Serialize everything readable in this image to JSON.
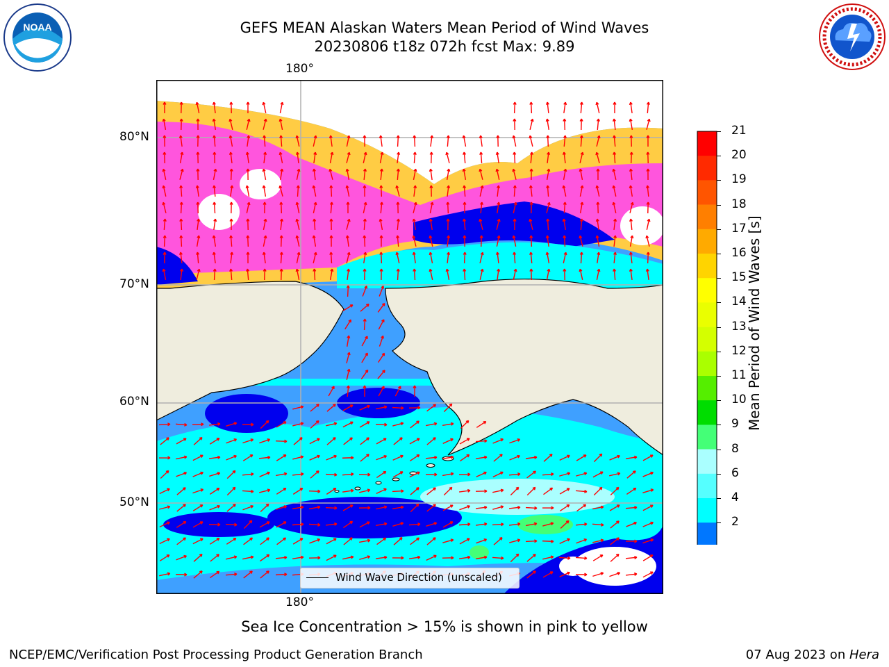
{
  "header": {
    "title_line1": "GEFS MEAN Alaskan Waters Mean Period of Wind Waves",
    "title_line2": "20230806 t18z 072h fcst   Max: 9.89"
  },
  "logos": {
    "left": {
      "text": "NOAA",
      "ring_text": "NATIONAL OCEANIC AND ATMOSPHERIC ADMINISTRATION · U.S. DEPARTMENT OF COMMERCE"
    },
    "right": {
      "ring_text": "NATIONAL WEATHER SERVICE"
    }
  },
  "map": {
    "lon_top": "180°",
    "lon_bottom": "180°",
    "lat_labels": [
      "80°N",
      "70°N",
      "60°N",
      "50°N"
    ],
    "legend_label": "Wind Wave Direction (unscaled)",
    "colors": {
      "ocean_light": "#00ffff",
      "ocean_mid": "#3fa0ff",
      "ocean_dark": "#0000ee",
      "land": "#efedde",
      "ice_pink": "#ff55dd",
      "ice_yellow": "#ffcc44",
      "arrow": "#ff0000",
      "grid": "#b0b0b0"
    }
  },
  "colorbar": {
    "label": "Mean Period of Wind Waves [s]",
    "ticks": [
      "21",
      "20",
      "19",
      "18",
      "17",
      "16",
      "15",
      "14",
      "13",
      "12",
      "11",
      "10",
      "9",
      "8",
      "6",
      "4",
      "2"
    ],
    "colors": [
      "#ff0000",
      "#ff2a00",
      "#ff5500",
      "#ff7f00",
      "#ffaa00",
      "#ffd400",
      "#ffff00",
      "#eaff00",
      "#d4ff00",
      "#aaff00",
      "#55ee00",
      "#00dd00",
      "#44ff77",
      "#aaffff",
      "#55ffff",
      "#00ffff",
      "#0077ff"
    ],
    "under_color": "#1b1bff"
  },
  "footer": {
    "sea_ice_note": "Sea Ice Concentration > 15% is shown in pink to yellow",
    "branch": "NCEP/EMC/Verification Post Processing Product Generation Branch",
    "date": "07 Aug 2023 on ",
    "machine": "Hera"
  }
}
